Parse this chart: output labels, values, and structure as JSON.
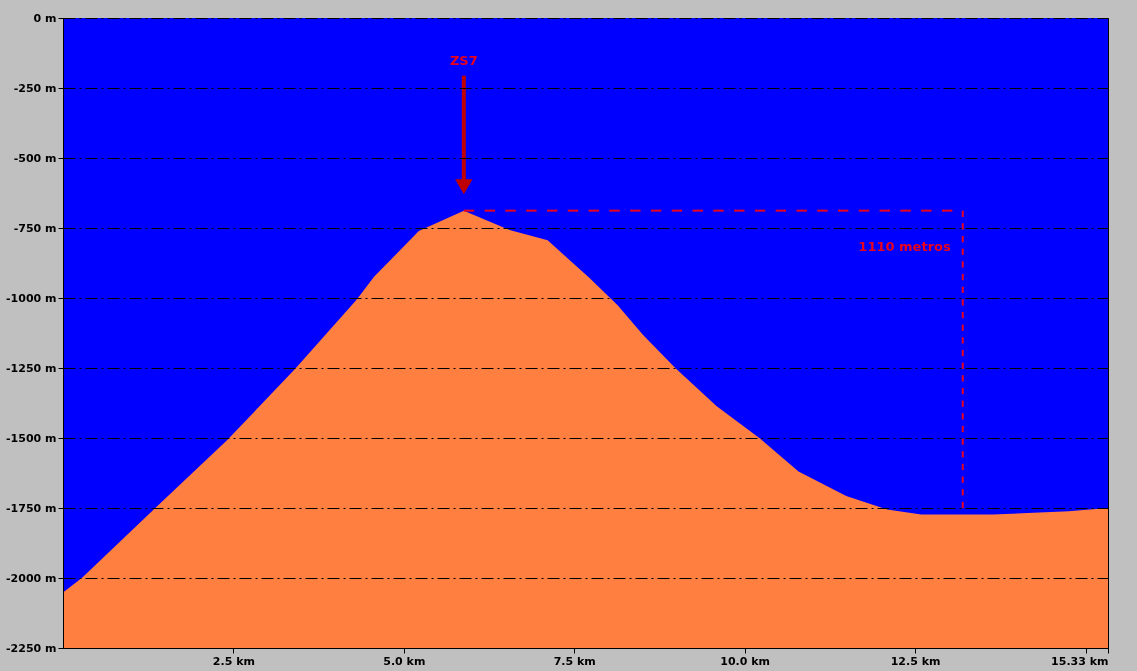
{
  "chart_data": {
    "type": "area",
    "x": [
      0,
      0.28,
      1.35,
      2.41,
      3.41,
      4.31,
      4.56,
      5.22,
      5.88,
      6.55,
      7.11,
      7.72,
      8.14,
      8.51,
      8.99,
      9.59,
      10.23,
      10.79,
      11.49,
      12.09,
      12.59,
      13.64,
      14.75,
      15.29,
      15.33
    ],
    "series": [
      {
        "color": "#0000ff",
        "values": [
          -2052,
          -1999,
          -1751,
          -1507,
          -1252,
          -1005,
          -925,
          -761,
          -688,
          -757,
          -794,
          -928,
          -1027,
          -1132,
          -1252,
          -1387,
          -1503,
          -1620,
          -1707,
          -1755,
          -1773,
          -1773,
          -1762,
          -1751,
          -1750
        ]
      }
    ],
    "xlim": [
      0,
      15.33
    ],
    "xticks": [
      {
        "value": 2.5,
        "label": "2.5 km"
      },
      {
        "value": 5,
        "label": "5.0 km"
      },
      {
        "value": 7.5,
        "label": "7.5 km"
      },
      {
        "value": 10,
        "label": "10.0 km"
      },
      {
        "value": 12.5,
        "label": "12.5 km"
      },
      {
        "value": 15,
        "label": null
      },
      {
        "value": 15.33,
        "label": "15.33 km"
      }
    ],
    "ylim": [
      -2250,
      0
    ],
    "yticks": [
      {
        "value": 0,
        "label": "0 m"
      },
      {
        "value": -250,
        "label": "-250 m"
      },
      {
        "value": -500,
        "label": "-500 m"
      },
      {
        "value": -750,
        "label": "-750 m"
      },
      {
        "value": -1000,
        "label": "-1000 m"
      },
      {
        "value": -1250,
        "label": "-1250 m"
      },
      {
        "value": -1500,
        "label": "-1500 m"
      },
      {
        "value": -1750,
        "label": "-1750 m"
      },
      {
        "value": -2000,
        "label": "-2000 m"
      },
      {
        "value": -2250,
        "label": "-2250 m"
      }
    ],
    "grid": "y",
    "bands": [
      {
        "axis": "y",
        "from": -2250,
        "to": 0,
        "color": "#ff7f40"
      }
    ],
    "annotations": [
      "ZS7",
      "1110 metros"
    ]
  }
}
